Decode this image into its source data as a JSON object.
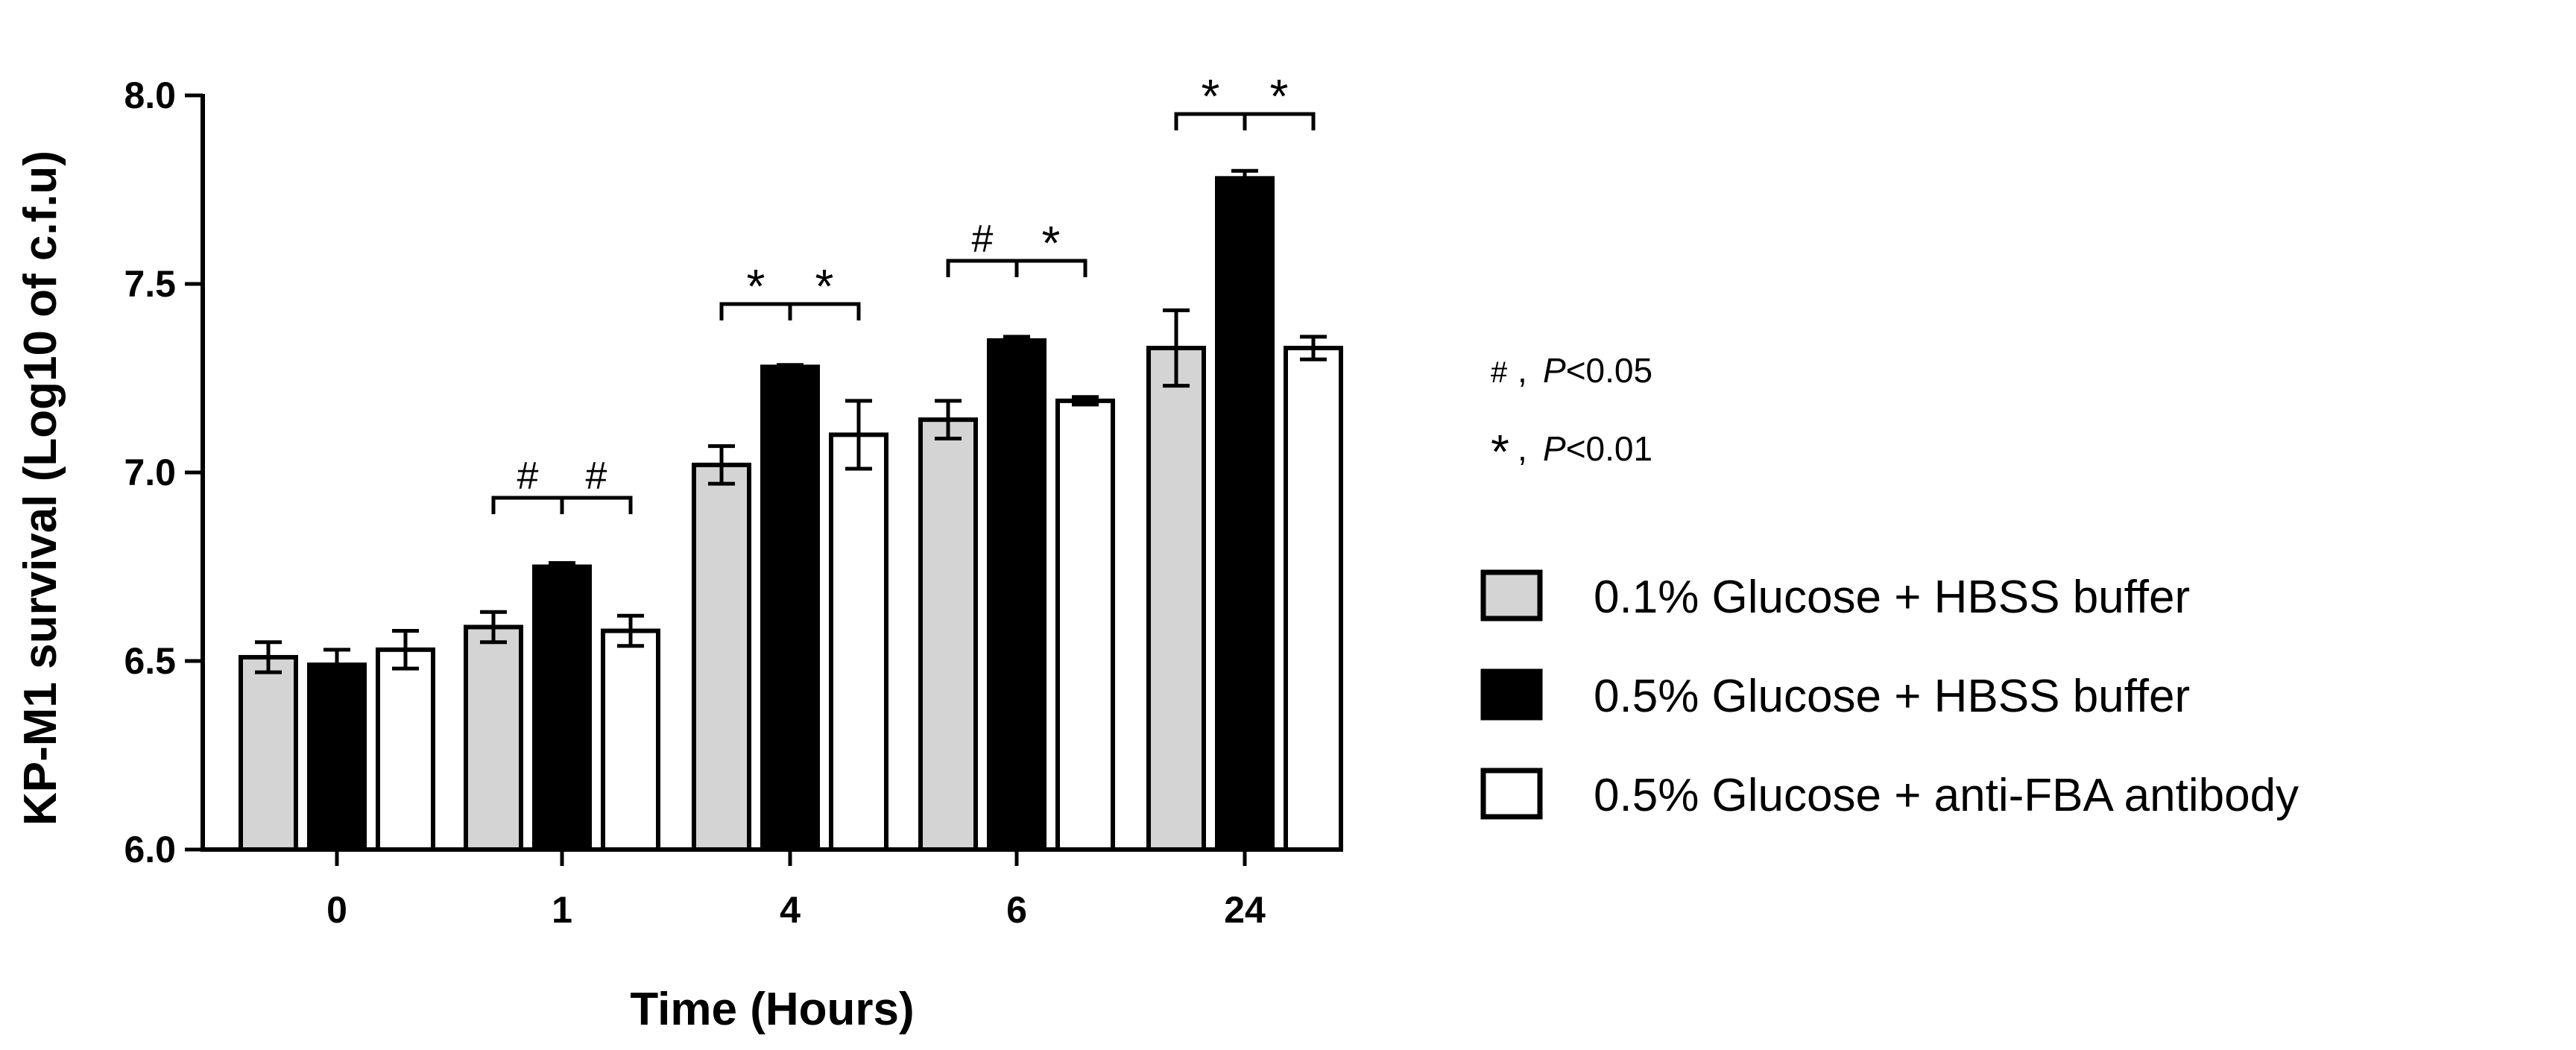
{
  "chart_data": {
    "type": "bar",
    "categories": [
      "0",
      "1",
      "4",
      "6",
      "24"
    ],
    "series": [
      {
        "name": "0.1% Glucose + HBSS buffer",
        "fill": "#d4d4d4",
        "values": [
          6.51,
          6.59,
          7.02,
          7.14,
          7.33
        ],
        "errors": [
          0.04,
          0.04,
          0.05,
          0.05,
          0.1
        ]
      },
      {
        "name": "0.5% Glucose + HBSS buffer",
        "fill": "#000000",
        "values": [
          6.49,
          6.75,
          7.28,
          7.35,
          7.78
        ],
        "errors": [
          0.04,
          0.01,
          0.005,
          0.01,
          0.02
        ]
      },
      {
        "name": "0.5% Glucose + anti-FBA antibody",
        "fill": "#ffffff",
        "values": [
          6.53,
          6.58,
          7.1,
          7.19,
          7.33
        ],
        "errors": [
          0.05,
          0.04,
          0.09,
          0.01,
          0.03
        ]
      }
    ],
    "ylabel": "KP-M1 survival (Log10 of c.f.u)",
    "xlabel": "Time (Hours)",
    "ylim": [
      6.0,
      8.0
    ],
    "yticks": [
      6.0,
      6.5,
      7.0,
      7.5,
      8.0
    ],
    "ytick_labels": [
      "6.0",
      "6.5",
      "7.0",
      "7.5",
      "8.0"
    ],
    "grid": false,
    "legend_position": "right",
    "significance": [
      {
        "category": "1",
        "left": "#",
        "right": "#"
      },
      {
        "category": "4",
        "left": "*",
        "right": "*"
      },
      {
        "category": "6",
        "left": "#",
        "right": "*"
      },
      {
        "category": "24",
        "left": "*",
        "right": "*"
      }
    ],
    "significance_key": [
      {
        "symbol": "#",
        "label": "P<0.05"
      },
      {
        "symbol": "*",
        "label": "P<0.01"
      }
    ]
  }
}
